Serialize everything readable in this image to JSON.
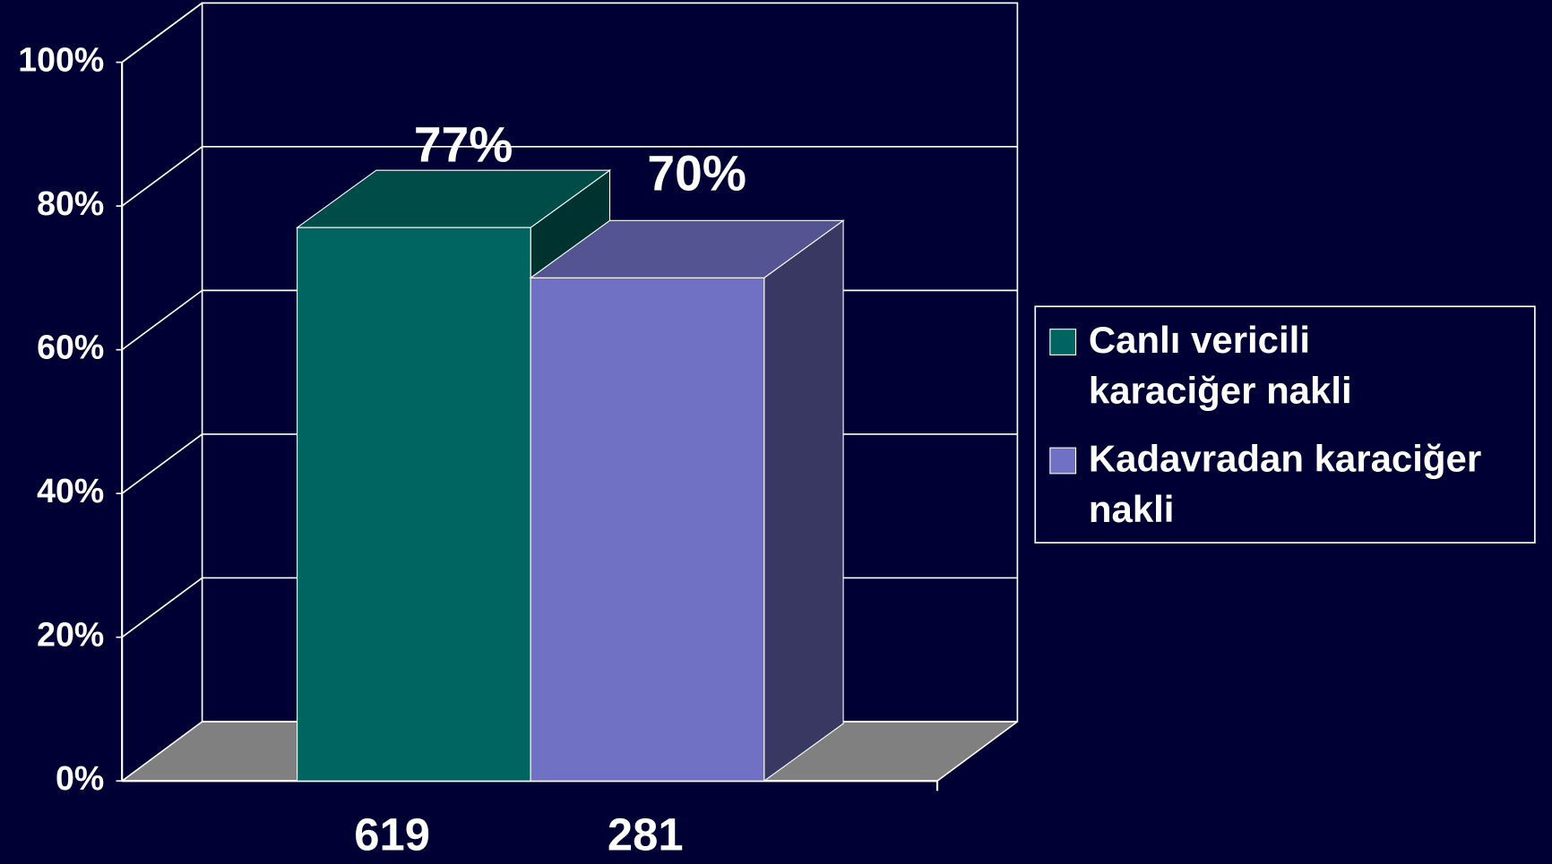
{
  "chart_data": {
    "type": "bar3d",
    "categories": [
      "619",
      "281"
    ],
    "series": [
      {
        "name": "Canlı vericili karaciğer nakli",
        "color": "#006560",
        "values": [
          77,
          null
        ],
        "value_labels": [
          "77%",
          null
        ]
      },
      {
        "name": "Kadavradan karaciğer nakli",
        "color": "#7070c4",
        "values": [
          null,
          70
        ],
        "value_labels": [
          null,
          "70%"
        ]
      }
    ],
    "ylim": [
      0,
      100
    ],
    "yticks": [
      {
        "value": 0,
        "label": "0%"
      },
      {
        "value": 20,
        "label": "20%"
      },
      {
        "value": 40,
        "label": "40%"
      },
      {
        "value": 60,
        "label": "60%"
      },
      {
        "value": 80,
        "label": "80%"
      },
      {
        "value": 100,
        "label": "100%"
      }
    ],
    "grid": true,
    "legend": "right"
  }
}
